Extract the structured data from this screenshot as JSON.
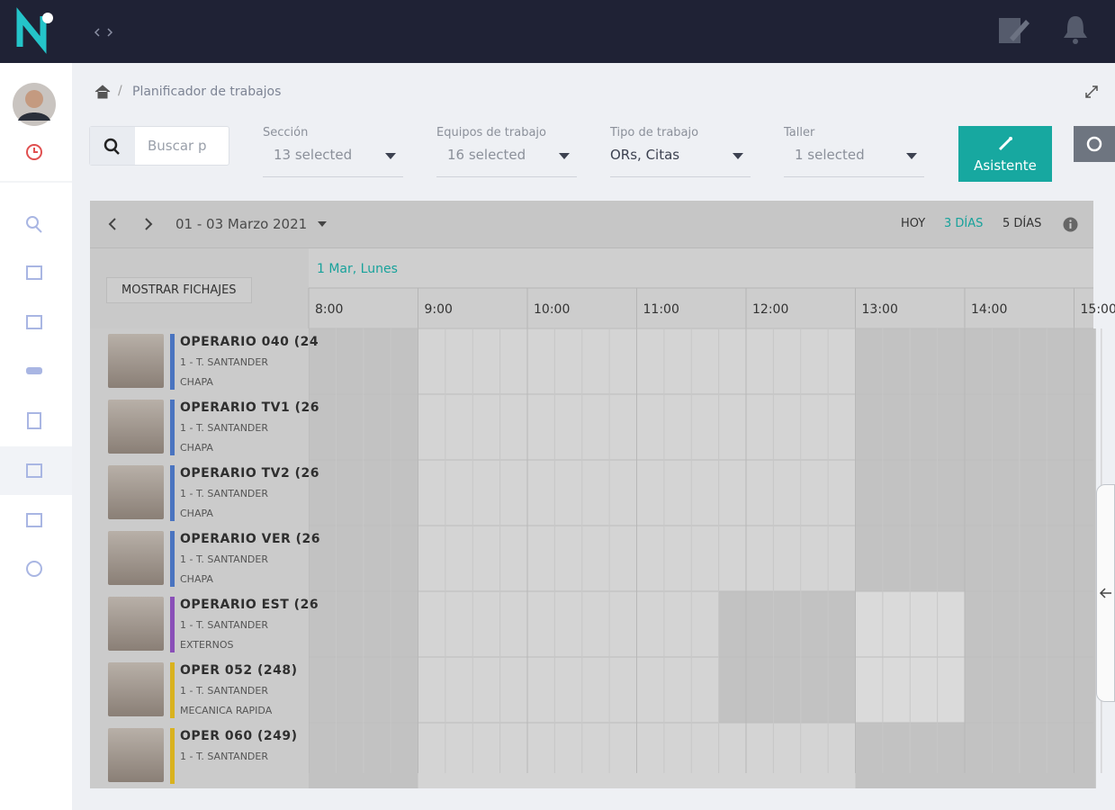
{
  "breadcrumb": {
    "page": "Planificador de trabajos"
  },
  "search": {
    "placeholder": "Buscar p"
  },
  "filters": [
    {
      "label": "Sección",
      "value": "13 selected"
    },
    {
      "label": "Equipos de trabajo",
      "value": "16 selected"
    },
    {
      "label": "Tipo de trabajo",
      "value": "ORs, Citas"
    },
    {
      "label": "Taller",
      "value": "1 selected"
    }
  ],
  "assistant_button": "Asistente",
  "calendar": {
    "range": "01 - 03 Marzo 2021",
    "views": [
      "HOY",
      "3 DÍAS",
      "5 DÍAS"
    ],
    "active_view": 1,
    "show_button": "MOSTRAR FICHAJES",
    "day": "1 Mar, Lunes",
    "hours": [
      "8:00",
      "9:00",
      "10:00",
      "11:00",
      "12:00",
      "13:00",
      "14:00",
      "15:00"
    ],
    "operators": [
      {
        "name": "OPERARIO 040 (24",
        "workshop": "1 - T. SANTANDER",
        "section": "CHAPA",
        "color": "#4a74c0"
      },
      {
        "name": "OPERARIO TV1 (26",
        "workshop": "1 - T. SANTANDER",
        "section": "CHAPA",
        "color": "#4a74c0"
      },
      {
        "name": "OPERARIO TV2 (26",
        "workshop": "1 - T. SANTANDER",
        "section": "CHAPA",
        "color": "#4a74c0"
      },
      {
        "name": "OPERARIO VER (26",
        "workshop": "1 - T. SANTANDER",
        "section": "CHAPA",
        "color": "#4a74c0"
      },
      {
        "name": "OPERARIO EST (26",
        "workshop": "1 - T. SANTANDER",
        "section": "EXTERNOS",
        "color": "#8a4fb8"
      },
      {
        "name": "OPER 052 (248)",
        "workshop": "1 - T. SANTANDER",
        "section": "MECANICA RAPIDA",
        "color": "#d9b21f"
      },
      {
        "name": "OPER 060 (249)",
        "workshop": "1 - T. SANTANDER",
        "section": null,
        "color": "#d9b21f"
      }
    ]
  }
}
